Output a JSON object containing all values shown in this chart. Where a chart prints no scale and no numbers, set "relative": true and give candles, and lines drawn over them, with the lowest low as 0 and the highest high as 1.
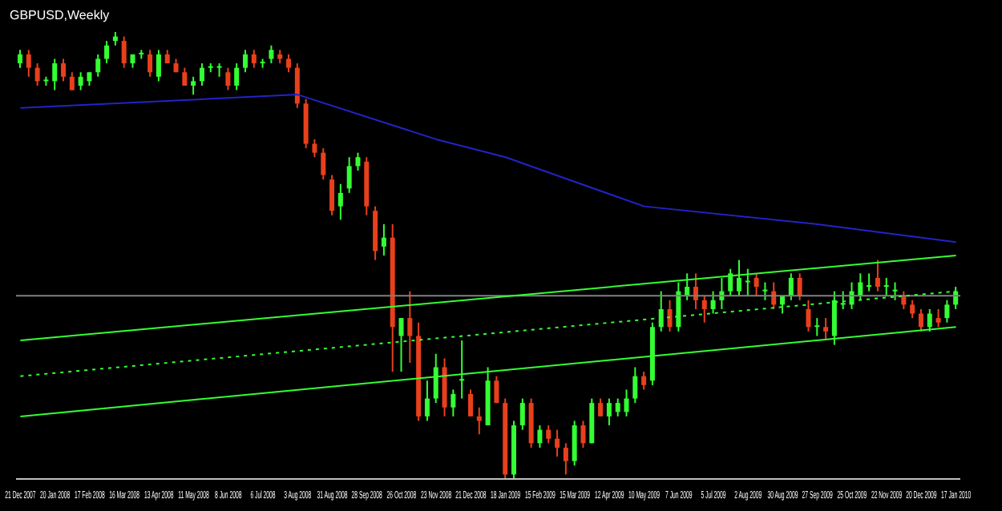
{
  "chart_data": {
    "type": "candlestick",
    "title": "GBPUSD,Weekly",
    "relative": true,
    "categories": [
      "21 Dec 2007",
      null,
      null,
      null,
      "20 Jan 2008",
      null,
      null,
      null,
      "17 Feb 2008",
      null,
      null,
      null,
      "16 Mar 2008",
      null,
      null,
      null,
      "13 Apr 2008",
      null,
      null,
      null,
      "11 May 2008",
      null,
      null,
      null,
      "8 Jun 2008",
      null,
      null,
      null,
      "6 Jul 2008",
      null,
      null,
      null,
      "3 Aug 2008",
      null,
      null,
      null,
      "31 Aug 2008",
      null,
      null,
      null,
      "28 Sep 2008",
      null,
      null,
      null,
      "26 Oct 2008",
      null,
      null,
      null,
      "23 Nov 2008",
      null,
      null,
      null,
      "21 Dec 2008",
      null,
      null,
      null,
      "18 Jan 2009",
      null,
      null,
      null,
      "15 Feb 2009",
      null,
      null,
      null,
      "15 Mar 2009",
      null,
      null,
      null,
      "12 Apr 2009",
      null,
      null,
      null,
      "10 May 2009",
      null,
      null,
      null,
      "7 Jun 2009",
      null,
      null,
      null,
      "5 Jul 2009",
      null,
      null,
      null,
      "2 Aug 2009",
      null,
      null,
      null,
      "30 Aug 2009",
      null,
      null,
      null,
      "27 Sep 2009",
      null,
      null,
      null,
      "25 Oct 2009",
      null,
      null,
      null,
      "22 Nov 2009",
      null,
      null,
      null,
      "20 Dec 2009",
      null,
      null,
      null,
      "17 Jan 2010"
    ],
    "ohlc": [
      [
        0.93,
        0.96,
        0.92,
        0.95
      ],
      [
        0.95,
        0.96,
        0.9,
        0.92
      ],
      [
        0.92,
        0.93,
        0.88,
        0.89
      ],
      [
        0.89,
        0.9,
        0.88,
        0.89
      ],
      [
        0.89,
        0.94,
        0.87,
        0.93
      ],
      [
        0.93,
        0.94,
        0.89,
        0.9
      ],
      [
        0.9,
        0.91,
        0.87,
        0.87
      ],
      [
        0.88,
        0.91,
        0.87,
        0.9
      ],
      [
        0.89,
        0.91,
        0.88,
        0.91
      ],
      [
        0.91,
        0.95,
        0.9,
        0.94
      ],
      [
        0.94,
        0.98,
        0.93,
        0.97
      ],
      [
        0.98,
        1.0,
        0.97,
        0.99
      ],
      [
        0.98,
        0.99,
        0.92,
        0.93
      ],
      [
        0.93,
        0.95,
        0.92,
        0.95
      ],
      [
        0.95,
        0.96,
        0.94,
        0.95
      ],
      [
        0.95,
        0.96,
        0.9,
        0.91
      ],
      [
        0.9,
        0.96,
        0.89,
        0.95
      ],
      [
        0.95,
        0.96,
        0.93,
        0.93
      ],
      [
        0.93,
        0.94,
        0.91,
        0.91
      ],
      [
        0.91,
        0.92,
        0.88,
        0.88
      ],
      [
        0.88,
        0.9,
        0.86,
        0.89
      ],
      [
        0.89,
        0.93,
        0.88,
        0.92
      ],
      [
        0.92,
        0.93,
        0.91,
        0.92
      ],
      [
        0.92,
        0.93,
        0.9,
        0.92
      ],
      [
        0.91,
        0.92,
        0.87,
        0.88
      ],
      [
        0.88,
        0.93,
        0.87,
        0.92
      ],
      [
        0.92,
        0.96,
        0.91,
        0.95
      ],
      [
        0.95,
        0.96,
        0.92,
        0.93
      ],
      [
        0.93,
        0.94,
        0.92,
        0.93
      ],
      [
        0.94,
        0.97,
        0.93,
        0.96
      ],
      [
        0.95,
        0.96,
        0.93,
        0.94
      ],
      [
        0.94,
        0.95,
        0.91,
        0.92
      ],
      [
        0.92,
        0.93,
        0.83,
        0.84
      ],
      [
        0.84,
        0.85,
        0.74,
        0.75
      ],
      [
        0.75,
        0.76,
        0.72,
        0.73
      ],
      [
        0.73,
        0.74,
        0.67,
        0.68
      ],
      [
        0.67,
        0.68,
        0.59,
        0.6
      ],
      [
        0.61,
        0.66,
        0.58,
        0.64
      ],
      [
        0.65,
        0.72,
        0.64,
        0.7
      ],
      [
        0.7,
        0.73,
        0.69,
        0.72
      ],
      [
        0.71,
        0.72,
        0.59,
        0.61
      ],
      [
        0.6,
        0.61,
        0.49,
        0.51
      ],
      [
        0.52,
        0.57,
        0.5,
        0.54
      ],
      [
        0.54,
        0.57,
        0.24,
        0.34
      ],
      [
        0.32,
        0.36,
        0.24,
        0.36
      ],
      [
        0.36,
        0.42,
        0.26,
        0.32
      ],
      [
        0.32,
        0.35,
        0.13,
        0.14
      ],
      [
        0.14,
        0.22,
        0.13,
        0.18
      ],
      [
        0.18,
        0.28,
        0.17,
        0.25
      ],
      [
        0.25,
        0.27,
        0.14,
        0.16
      ],
      [
        0.16,
        0.2,
        0.14,
        0.19
      ],
      [
        0.22,
        0.31,
        0.18,
        0.22
      ],
      [
        0.19,
        0.2,
        0.14,
        0.14
      ],
      [
        0.14,
        0.16,
        0.1,
        0.13
      ],
      [
        0.12,
        0.25,
        0.12,
        0.22
      ],
      [
        0.22,
        0.23,
        0.17,
        0.17
      ],
      [
        0.17,
        0.18,
        0.0,
        0.01
      ],
      [
        0.01,
        0.13,
        0.0,
        0.12
      ],
      [
        0.12,
        0.18,
        0.11,
        0.17
      ],
      [
        0.17,
        0.18,
        0.07,
        0.08
      ],
      [
        0.08,
        0.12,
        0.07,
        0.11
      ],
      [
        0.11,
        0.12,
        0.08,
        0.09
      ],
      [
        0.09,
        0.11,
        0.05,
        0.07
      ],
      [
        0.07,
        0.08,
        0.01,
        0.04
      ],
      [
        0.04,
        0.13,
        0.03,
        0.12
      ],
      [
        0.12,
        0.13,
        0.07,
        0.08
      ],
      [
        0.08,
        0.18,
        0.08,
        0.17
      ],
      [
        0.17,
        0.18,
        0.14,
        0.14
      ],
      [
        0.14,
        0.18,
        0.12,
        0.17
      ],
      [
        0.15,
        0.18,
        0.14,
        0.17
      ],
      [
        0.15,
        0.2,
        0.14,
        0.18
      ],
      [
        0.18,
        0.25,
        0.17,
        0.23
      ],
      [
        0.23,
        0.24,
        0.2,
        0.21
      ],
      [
        0.22,
        0.35,
        0.21,
        0.34
      ],
      [
        0.34,
        0.42,
        0.33,
        0.38
      ],
      [
        0.38,
        0.4,
        0.33,
        0.34
      ],
      [
        0.34,
        0.44,
        0.33,
        0.42
      ],
      [
        0.41,
        0.46,
        0.4,
        0.43
      ],
      [
        0.43,
        0.46,
        0.38,
        0.4
      ],
      [
        0.4,
        0.41,
        0.35,
        0.38
      ],
      [
        0.38,
        0.42,
        0.37,
        0.4
      ],
      [
        0.4,
        0.45,
        0.38,
        0.42
      ],
      [
        0.42,
        0.47,
        0.41,
        0.46
      ],
      [
        0.42,
        0.49,
        0.41,
        0.45
      ],
      [
        0.44,
        0.47,
        0.41,
        0.44
      ],
      [
        0.45,
        0.46,
        0.41,
        0.43
      ],
      [
        0.42,
        0.44,
        0.4,
        0.42
      ],
      [
        0.42,
        0.44,
        0.38,
        0.39
      ],
      [
        0.39,
        0.41,
        0.37,
        0.41
      ],
      [
        0.41,
        0.46,
        0.4,
        0.45
      ],
      [
        0.45,
        0.46,
        0.4,
        0.41
      ],
      [
        0.38,
        0.4,
        0.33,
        0.34
      ],
      [
        0.34,
        0.36,
        0.32,
        0.34
      ],
      [
        0.34,
        0.36,
        0.31,
        0.33
      ],
      [
        0.32,
        0.42,
        0.3,
        0.4
      ],
      [
        0.39,
        0.42,
        0.38,
        0.39
      ],
      [
        0.39,
        0.44,
        0.38,
        0.42
      ],
      [
        0.41,
        0.46,
        0.4,
        0.44
      ],
      [
        0.43,
        0.46,
        0.42,
        0.43
      ],
      [
        0.45,
        0.49,
        0.42,
        0.43
      ],
      [
        0.43,
        0.45,
        0.41,
        0.43
      ],
      [
        0.42,
        0.44,
        0.4,
        0.42
      ],
      [
        0.41,
        0.42,
        0.38,
        0.39
      ],
      [
        0.39,
        0.4,
        0.36,
        0.37
      ],
      [
        0.37,
        0.38,
        0.33,
        0.34
      ],
      [
        0.34,
        0.38,
        0.33,
        0.37
      ],
      [
        0.36,
        0.38,
        0.34,
        0.35
      ],
      [
        0.36,
        0.4,
        0.35,
        0.39
      ],
      [
        0.39,
        0.43,
        0.38,
        0.42
      ]
    ],
    "series": [
      {
        "type": "line",
        "color": "#33ff33",
        "x": [
          "21 Dec 2007",
          "17 Jan 2010"
        ],
        "values": [
          0.31,
          0.5
        ]
      },
      {
        "type": "line",
        "color": "#33ff33",
        "line_style": "dotted",
        "x": [
          "21 Dec 2007",
          "17 Jan 2010"
        ],
        "values": [
          0.23,
          0.42
        ]
      },
      {
        "type": "line",
        "color": "#33ff33",
        "x": [
          "21 Dec 2007",
          "17 Jan 2010"
        ],
        "values": [
          0.14,
          0.34
        ]
      },
      {
        "type": "line",
        "color": "#2323c8",
        "x": [
          "21 Dec 2007",
          "3 Aug 2008",
          "23 Nov 2008",
          "18 Jan 2009",
          "10 May 2009",
          "27 Sep 2009",
          "17 Jan 2010"
        ],
        "values": [
          0.83,
          0.86,
          0.76,
          0.72,
          0.61,
          0.57,
          0.53
        ]
      }
    ],
    "ref_lines": [
      {
        "axis": "y",
        "value": 0.41,
        "color": "#808080"
      }
    ],
    "grid": false,
    "legend": false
  }
}
